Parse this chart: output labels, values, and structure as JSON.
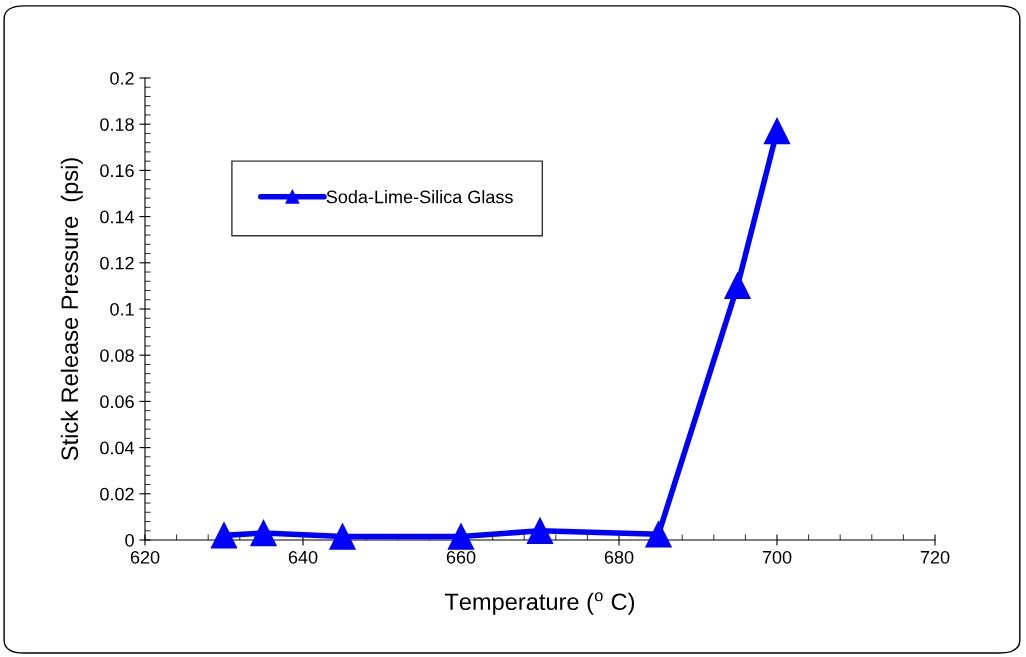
{
  "chart_data": {
    "type": "line",
    "xlabel": "Temperature ($^{o}$ C)",
    "ylabel": "Stick Release Pressure  (psi)",
    "x": [
      630,
      635,
      645,
      660,
      670,
      685,
      695,
      700
    ],
    "series": [
      {
        "name": "Soda-Lime-Silica Glass",
        "color": "#0000ff",
        "values": [
          0.002,
          0.003,
          0.0015,
          0.0015,
          0.004,
          0.0025,
          0.11,
          0.177
        ]
      }
    ],
    "xlim": [
      620,
      720
    ],
    "xticks": [
      620,
      640,
      660,
      680,
      700,
      720
    ],
    "ylim": [
      0,
      0.2
    ],
    "yticks": [
      0,
      0.02,
      0.04,
      0.06,
      0.08,
      0.1,
      0.12,
      0.14,
      0.16,
      0.18,
      0.2
    ],
    "marker": "triangle",
    "line_style": "solid",
    "legend": "top left",
    "grid": false
  }
}
